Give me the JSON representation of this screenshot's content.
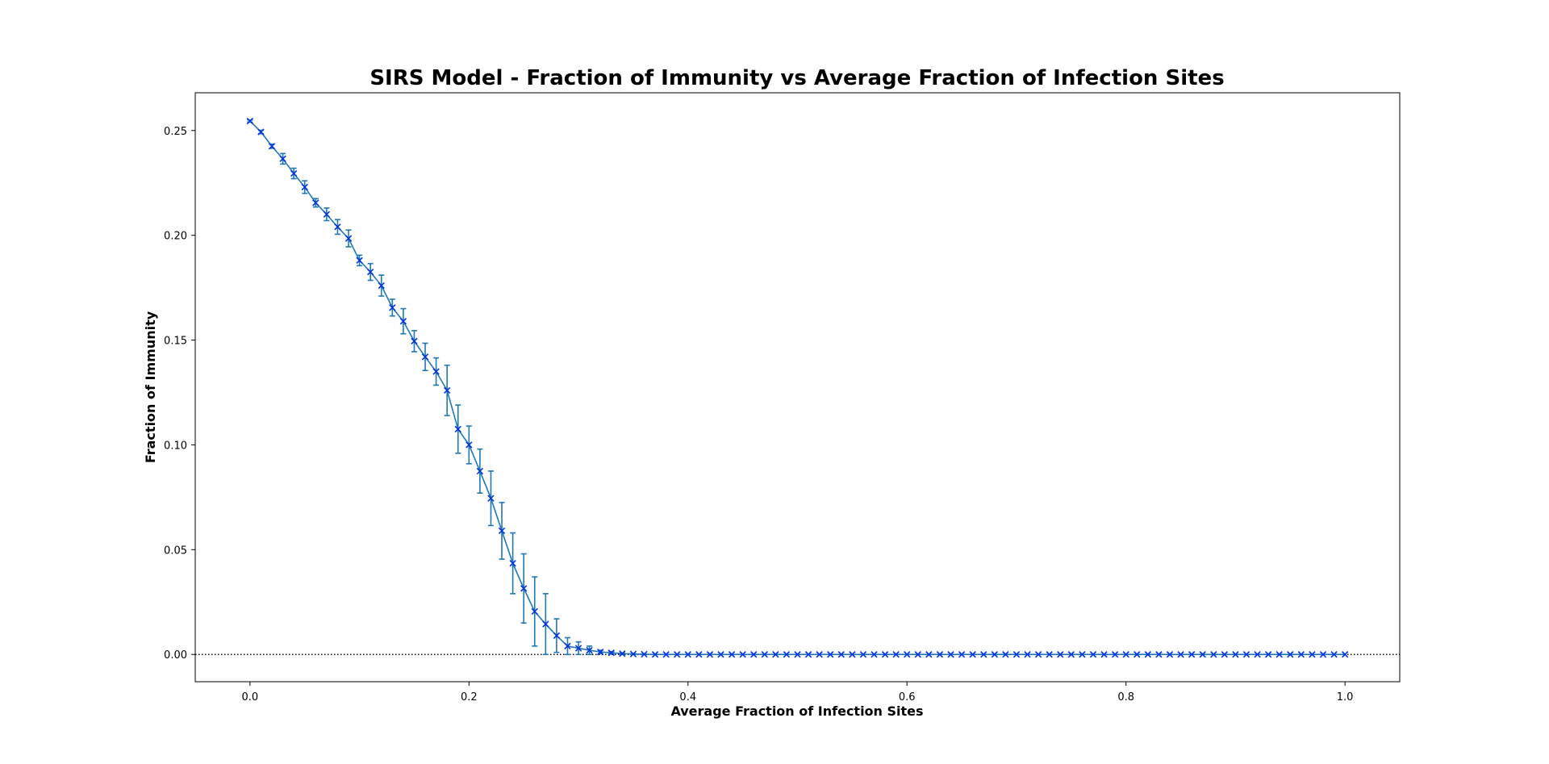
{
  "chart_data": {
    "type": "line",
    "title": "SIRS Model - Fraction of Immunity vs Average Fraction of Infection Sites",
    "xlabel": "Average Fraction of Infection Sites",
    "ylabel": "Fraction of Immunity",
    "xlim": [
      -0.05,
      1.05
    ],
    "ylim": [
      -0.013,
      0.268
    ],
    "x_ticks": [
      0.0,
      0.2,
      0.4,
      0.6,
      0.8,
      1.0
    ],
    "x_tick_labels": [
      "0.0",
      "0.2",
      "0.4",
      "0.6",
      "0.8",
      "1.0"
    ],
    "y_ticks": [
      0.0,
      0.05,
      0.1,
      0.15,
      0.2,
      0.25
    ],
    "y_tick_labels": [
      "0.00",
      "0.05",
      "0.10",
      "0.15",
      "0.20",
      "0.25"
    ],
    "grid": false,
    "reference_line": {
      "y": 0.0,
      "style": "dotted",
      "color": "#000000"
    },
    "series": [
      {
        "line_color": "#1f77b4",
        "marker_color": "#0033dd",
        "marker": "x",
        "x": [
          0.0,
          0.01,
          0.02,
          0.03,
          0.04,
          0.05,
          0.06,
          0.07,
          0.08,
          0.09,
          0.1,
          0.11,
          0.12,
          0.13,
          0.14,
          0.15,
          0.16,
          0.17,
          0.18,
          0.19,
          0.2,
          0.21,
          0.22,
          0.23,
          0.24,
          0.25,
          0.26,
          0.27,
          0.28,
          0.29,
          0.3,
          0.31,
          0.32,
          0.33,
          0.34,
          0.35,
          0.36,
          0.37,
          0.38,
          0.39,
          0.4,
          0.41,
          0.42,
          0.43,
          0.44,
          0.45,
          0.46,
          0.47,
          0.48,
          0.49,
          0.5,
          0.51,
          0.52,
          0.53,
          0.54,
          0.55,
          0.56,
          0.57,
          0.58,
          0.59,
          0.6,
          0.61,
          0.62,
          0.63,
          0.64,
          0.65,
          0.66,
          0.67,
          0.68,
          0.69,
          0.7,
          0.71,
          0.72,
          0.73,
          0.74,
          0.75,
          0.76,
          0.77,
          0.78,
          0.79,
          0.8,
          0.81,
          0.82,
          0.83,
          0.84,
          0.85,
          0.86,
          0.87,
          0.88,
          0.89,
          0.9,
          0.91,
          0.92,
          0.93,
          0.94,
          0.95,
          0.96,
          0.97,
          0.98,
          0.99,
          1.0
        ],
        "y": [
          0.2545,
          0.2493,
          0.2425,
          0.2365,
          0.2295,
          0.223,
          0.2155,
          0.21,
          0.204,
          0.1985,
          0.188,
          0.1825,
          0.176,
          0.1655,
          0.159,
          0.1495,
          0.142,
          0.135,
          0.126,
          0.1075,
          0.1,
          0.0875,
          0.0745,
          0.059,
          0.0435,
          0.0315,
          0.0205,
          0.0145,
          0.009,
          0.004,
          0.003,
          0.002,
          0.0012,
          0.0008,
          0.0004,
          0.0002,
          0.0001,
          0,
          0,
          0,
          0,
          0,
          0,
          0,
          0,
          0,
          0,
          0,
          0,
          0,
          0,
          0,
          0,
          0,
          0,
          0,
          0,
          0,
          0,
          0,
          0,
          0,
          0,
          0,
          0,
          0,
          0,
          0,
          0,
          0,
          0,
          0,
          0,
          0,
          0,
          0,
          0,
          0,
          0,
          0,
          0,
          0,
          0,
          0,
          0,
          0,
          0,
          0,
          0,
          0,
          0,
          0,
          0,
          0,
          0,
          0,
          0,
          0,
          0,
          0,
          0
        ],
        "yerr": [
          0.0005,
          0.0008,
          0.001,
          0.0025,
          0.0025,
          0.003,
          0.002,
          0.003,
          0.0035,
          0.004,
          0.0025,
          0.004,
          0.005,
          0.004,
          0.006,
          0.005,
          0.0065,
          0.0065,
          0.012,
          0.0115,
          0.009,
          0.0105,
          0.013,
          0.0135,
          0.0145,
          0.0165,
          0.0165,
          0.0145,
          0.008,
          0.004,
          0.003,
          0.002,
          0.0008,
          0.0005,
          0.0003,
          0.0002,
          0.0001,
          0,
          0,
          0,
          0,
          0,
          0,
          0,
          0,
          0,
          0,
          0,
          0,
          0,
          0,
          0,
          0,
          0,
          0,
          0,
          0,
          0,
          0,
          0,
          0,
          0,
          0,
          0,
          0,
          0,
          0,
          0,
          0,
          0,
          0,
          0,
          0,
          0,
          0,
          0,
          0,
          0,
          0,
          0,
          0,
          0,
          0,
          0,
          0,
          0,
          0,
          0,
          0,
          0,
          0,
          0,
          0,
          0,
          0,
          0,
          0,
          0,
          0,
          0,
          0
        ]
      }
    ]
  }
}
